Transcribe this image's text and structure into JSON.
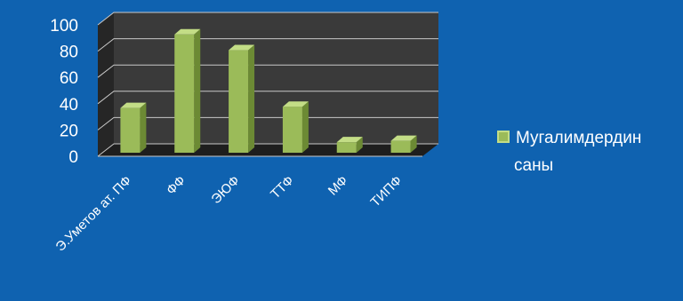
{
  "chart_data": {
    "type": "bar",
    "style": "3d-column",
    "categories": [
      "Э.Уметов ат. ПФ",
      "ФФ",
      "ЭЮФ",
      "ТТФ",
      "МФ",
      "ТИПФ"
    ],
    "series": [
      {
        "name": "Мугалимдердин саны",
        "values": [
          34,
          90,
          78,
          35,
          8,
          9
        ],
        "color": "#9bbb59"
      }
    ],
    "ylim": [
      0,
      100
    ],
    "yticks": [
      0,
      20,
      40,
      60,
      80,
      100
    ],
    "grid": true,
    "legend_position": "right",
    "legend_lines": [
      "Мугалимдердин",
      "саны"
    ],
    "colors": {
      "background": "#0f62b0",
      "plot_back": "#3a3a3a",
      "plot_side": "#262626",
      "plot_floor": "#1e1e1e",
      "bar_front": "#9bbb59",
      "bar_side": "#6c8a34",
      "bar_top": "#c3dd86",
      "gridline": "#c8c8c8",
      "text": "#ffffff"
    }
  }
}
